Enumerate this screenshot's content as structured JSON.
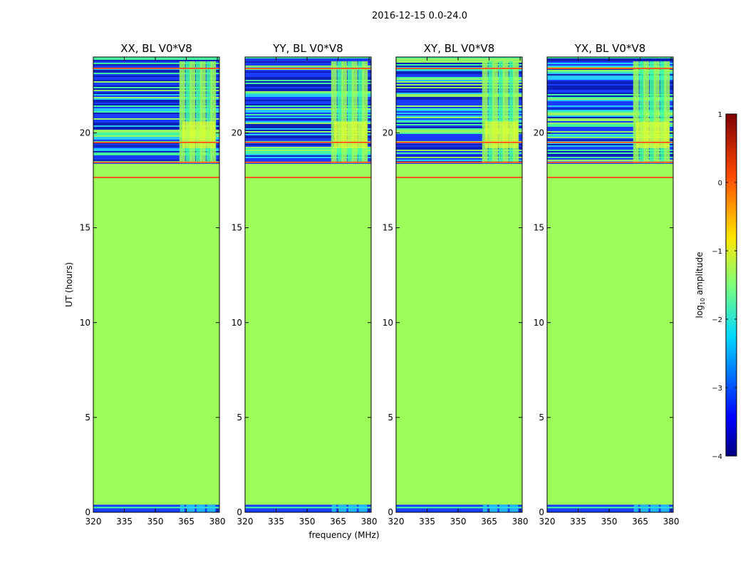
{
  "figure_title": "2016-12-15 0.0-24.0",
  "colors": {
    "flat_region": "#9CFF5A",
    "rfi_line": "#FF5A1E",
    "band_navy": "#0A1FB4",
    "band_blue": "#1A3CFF",
    "band_cyan": "#26D0FF",
    "band_green": "#46FF9C",
    "band_yellow": "#E8FF2A",
    "axes": "#000000"
  },
  "chart_data": [
    {
      "type": "heatmap",
      "title": "XX, BL V0*V8",
      "xlabel": "",
      "ylabel": "UT (hours)",
      "xlim": [
        320,
        381
      ],
      "ylim": [
        0,
        24
      ],
      "xticks": [
        320,
        335,
        350,
        365,
        380
      ],
      "yticks": [
        0,
        5,
        10,
        15,
        20
      ],
      "uniform_value_log10": -1.2,
      "uniform_span_hours": [
        0.4,
        17.8
      ],
      "rfi_line_hours": [
        17.65,
        18.45,
        19.5,
        23.4
      ],
      "active_span_hours": [
        18.4,
        24.0
      ],
      "low_span_hours": [
        0.0,
        0.4
      ],
      "bright_channel_columns_mhz": [
        363,
        366,
        368,
        371,
        373,
        376,
        378
      ]
    },
    {
      "type": "heatmap",
      "title": "YY, BL V0*V8",
      "xlabel": "frequency (MHz)",
      "ylabel": "",
      "xlim": [
        320,
        381
      ],
      "ylim": [
        0,
        24
      ],
      "xticks": [
        320,
        335,
        350,
        365,
        380
      ],
      "yticks": [
        0,
        5,
        10,
        15,
        20
      ],
      "uniform_value_log10": -1.2,
      "uniform_span_hours": [
        0.4,
        17.8
      ],
      "rfi_line_hours": [
        17.65,
        18.45,
        19.5,
        23.4
      ],
      "active_span_hours": [
        18.4,
        24.0
      ],
      "low_span_hours": [
        0.0,
        0.4
      ],
      "bright_channel_columns_mhz": [
        363,
        366,
        368,
        371,
        373,
        376,
        378
      ]
    },
    {
      "type": "heatmap",
      "title": "XY, BL V0*V8",
      "xlabel": "",
      "ylabel": "",
      "xlim": [
        320,
        381
      ],
      "ylim": [
        0,
        24
      ],
      "xticks": [
        320,
        335,
        350,
        365,
        380
      ],
      "yticks": [
        0,
        5,
        10,
        15,
        20
      ],
      "uniform_value_log10": -1.2,
      "uniform_span_hours": [
        0.4,
        17.8
      ],
      "rfi_line_hours": [
        17.65,
        18.45,
        19.5,
        23.4
      ],
      "active_span_hours": [
        18.4,
        24.0
      ],
      "low_span_hours": [
        0.0,
        0.4
      ],
      "bright_channel_columns_mhz": [
        363,
        366,
        368,
        371,
        373,
        376,
        378
      ]
    },
    {
      "type": "heatmap",
      "title": "YX, BL V0*V8",
      "xlabel": "",
      "ylabel": "",
      "xlim": [
        320,
        381
      ],
      "ylim": [
        0,
        24
      ],
      "xticks": [
        320,
        335,
        350,
        365,
        380
      ],
      "yticks": [
        0,
        5,
        10,
        15,
        20
      ],
      "uniform_value_log10": -1.2,
      "uniform_span_hours": [
        0.4,
        17.8
      ],
      "rfi_line_hours": [
        17.65,
        18.45,
        19.5,
        23.4
      ],
      "active_span_hours": [
        18.4,
        24.0
      ],
      "low_span_hours": [
        0.0,
        0.4
      ],
      "bright_channel_columns_mhz": [
        363,
        366,
        368,
        371,
        373,
        376,
        378
      ]
    }
  ],
  "colorbar": {
    "label": "log10 amplitude",
    "label_main": "log",
    "label_sub": "10",
    "label_rest": " amplitude",
    "range": [
      -4,
      1
    ],
    "ticks": [
      1,
      0,
      -1,
      -2,
      -3,
      -4
    ],
    "tick_labels": [
      "1",
      "0",
      "−1",
      "−2",
      "−3",
      "−4"
    ],
    "colormap": "jet"
  }
}
